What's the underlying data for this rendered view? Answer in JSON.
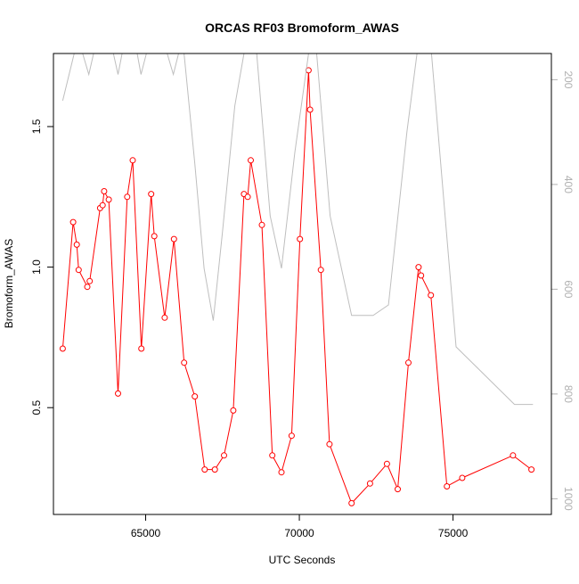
{
  "chart_data": {
    "type": "line",
    "title": "ORCAS RF03 Bromoform_AWAS",
    "xlabel": "UTC Seconds",
    "ylabel": "Bromoform_AWAS",
    "y2label": "",
    "xlim": [
      62000,
      78200
    ],
    "ylim": [
      0.12,
      1.76
    ],
    "y2lim": [
      1030,
      150
    ],
    "y2_reversed": true,
    "x_ticks": [
      65000,
      70000,
      75000
    ],
    "x_tick_labels": [
      "65000",
      "70000",
      "75000"
    ],
    "y_ticks": [
      0.5,
      1.0,
      1.5
    ],
    "y_tick_labels": [
      "0.5",
      "1.0",
      "1.5"
    ],
    "y2_ticks": [
      200,
      400,
      600,
      800,
      1000
    ],
    "y2_tick_labels": [
      "200",
      "400",
      "600",
      "800",
      "1000"
    ],
    "grid": false,
    "series": [
      {
        "axis": "left",
        "color": "#ff0000",
        "style": "line+circles",
        "x": [
          62300,
          62640,
          62760,
          62820,
          63100,
          63180,
          63520,
          63600,
          63650,
          63800,
          64100,
          64400,
          64580,
          64860,
          65180,
          65280,
          65620,
          65920,
          66250,
          66600,
          66920,
          67250,
          67550,
          67850,
          68200,
          68320,
          68420,
          68780,
          69120,
          69420,
          69750,
          70020,
          70300,
          70350,
          70700,
          70980,
          71700,
          72300,
          72850,
          73200,
          73550,
          73880,
          73960,
          74280,
          74800,
          75300,
          76950,
          77550
        ],
        "y": [
          0.71,
          1.16,
          1.08,
          0.99,
          0.93,
          0.95,
          1.21,
          1.22,
          1.27,
          1.24,
          0.55,
          1.25,
          1.38,
          0.71,
          1.26,
          1.11,
          0.82,
          1.1,
          0.66,
          0.54,
          0.28,
          0.28,
          0.33,
          0.49,
          1.26,
          1.25,
          1.38,
          1.15,
          0.33,
          0.27,
          0.4,
          1.1,
          1.7,
          1.56,
          0.99,
          0.37,
          0.16,
          0.23,
          0.3,
          0.21,
          0.66,
          1.0,
          0.97,
          0.9,
          0.22,
          0.25,
          0.33,
          0.28
        ]
      },
      {
        "axis": "right",
        "color": "#bebebe",
        "style": "line",
        "x": [
          62300,
          62800,
          63150,
          63500,
          63800,
          64100,
          64400,
          64600,
          64850,
          65200,
          65550,
          65900,
          66200,
          66600,
          66900,
          67200,
          67500,
          67900,
          68200,
          68600,
          69050,
          69420,
          69850,
          70300,
          70550,
          71000,
          71700,
          72400,
          72900,
          73500,
          73850,
          74300,
          75100,
          77000,
          77600
        ],
        "y": [
          240,
          120,
          190,
          100,
          110,
          190,
          100,
          110,
          190,
          110,
          120,
          190,
          120,
          360,
          560,
          660,
          490,
          250,
          150,
          140,
          460,
          560,
          340,
          150,
          140,
          460,
          650,
          650,
          630,
          300,
          140,
          150,
          710,
          820,
          820
        ]
      }
    ]
  }
}
